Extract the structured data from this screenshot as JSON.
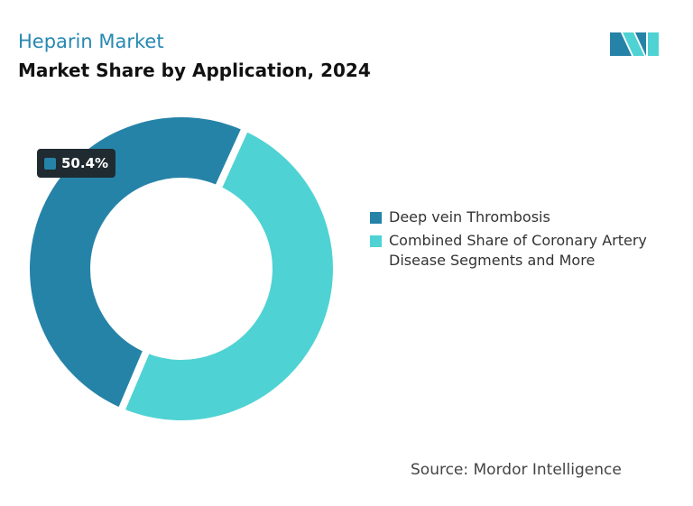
{
  "chart_data": {
    "type": "donut",
    "title": "Heparin Market",
    "subtitle": "Market Share by Application, 2024",
    "categories": [
      "Deep vein Thrombosis",
      "Combined Share of Coronary Artery Disease Segments and More"
    ],
    "values": [
      50.4,
      49.6
    ],
    "value_labels": [
      "50.4%",
      null
    ],
    "colors": [
      "#2683a8",
      "#4fd2d3"
    ],
    "source": "Source: Mordor Intelligence"
  }
}
